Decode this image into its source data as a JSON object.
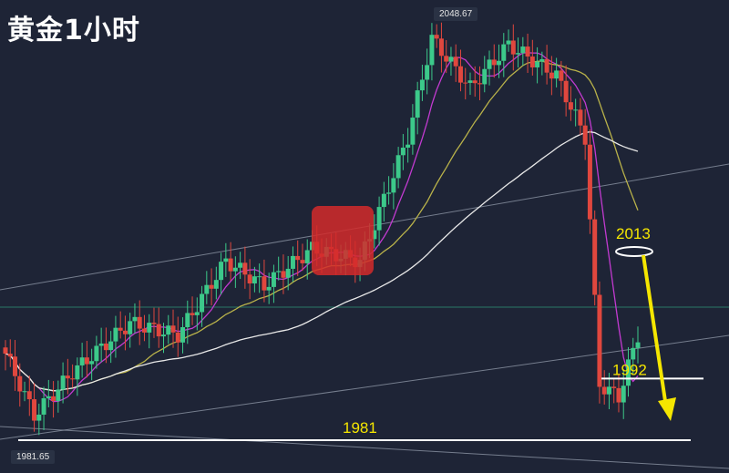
{
  "title": "黄金1小时",
  "colors": {
    "background": "#1e2436",
    "up": "#3cc98a",
    "down": "#e0473e",
    "ma_fast": "#c23ad0",
    "ma_mid": "#b9b24a",
    "ma_slow": "#e8e8e8",
    "annotation": "#f5e600",
    "trendline": "#9aa3b3"
  },
  "chart_data": {
    "type": "candlestick",
    "instrument_label": "黄金1小时",
    "high_label": "2048.67",
    "low_label": "1981.65",
    "levels": [
      {
        "label": "2013",
        "value": 2013
      },
      {
        "label": "1992",
        "value": 1992
      },
      {
        "label": "1981",
        "value": 1981
      }
    ],
    "price_range": [
      1975,
      2055
    ],
    "series": [
      {
        "name": "",
        "type": "ma"
      }
    ]
  }
}
